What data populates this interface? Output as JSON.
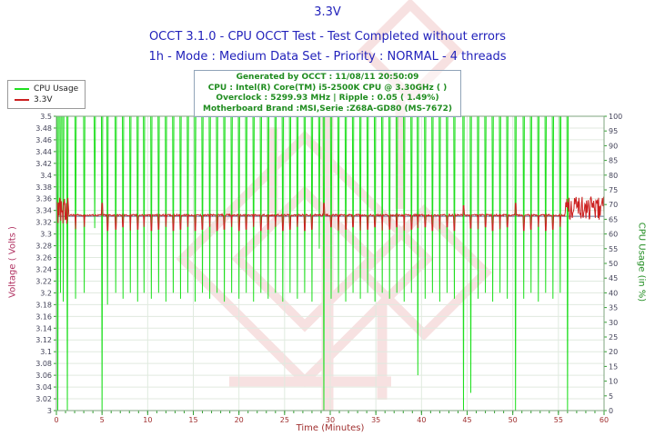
{
  "header": {
    "title": "3.3V",
    "line2": "OCCT 3.1.0 - CPU OCCT Test - Test Completed without errors",
    "line3": "1h - Mode : Medium Data Set - Priority : NORMAL - 4 threads",
    "color": "#2222bb"
  },
  "info_box": {
    "text_color": "#1f8c1f",
    "lines": [
      "Generated by OCCT : 11/08/11 20:50:09",
      "CPU : Intel(R) Core(TM) i5-2500K CPU @ 3.30GHz ( )",
      "Overclock : 5299.93 MHz | Ripple : 0.05 ( 1.49%)",
      "Motherboard Brand :MSI,Serie :Z68A-GD80 (MS-7672)"
    ]
  },
  "legend": {
    "items": [
      {
        "label": "CPU Usage",
        "color": "#1fdf1f"
      },
      {
        "label": "3.3V",
        "color": "#cc2020"
      }
    ]
  },
  "watermark_color": "#e39a9a",
  "chart_data": {
    "type": "line",
    "title": "3.3V",
    "xlabel": "Time (Minutes)",
    "x_min": 0,
    "x_max": 60,
    "x_tick_major": 5,
    "x_tick_minor": 1,
    "grid": true,
    "legend_position": "top-left",
    "left_axis": {
      "label": "Voltage ( Volts )",
      "min": 3.0,
      "max": 3.5,
      "step": 0.02,
      "color": "#b03060",
      "tick_label_color": "#44445a"
    },
    "right_axis": {
      "label": "CPU Usage (in %)",
      "min": 0,
      "max": 100,
      "step": 5,
      "color": "#1f8c1f",
      "tick_label_color": "#44445a"
    },
    "x_tick_label_color": "#a03030",
    "frame_color": "#7fa57f",
    "grid_color": "#e0eadf",
    "tick_color": "#2f9f2f",
    "series": [
      {
        "name": "CPU Usage",
        "axis": "right",
        "color": "#1fdf1f",
        "baseline": 100,
        "dips": [
          [
            0.15,
            0
          ],
          [
            0.45,
            40
          ],
          [
            0.75,
            37
          ],
          [
            1.2,
            0
          ],
          [
            2.1,
            38
          ],
          [
            3.05,
            40
          ],
          [
            4.2,
            62
          ],
          [
            5.0,
            0
          ],
          [
            5.6,
            36
          ],
          [
            6.5,
            40
          ],
          [
            7.3,
            38
          ],
          [
            8.1,
            40
          ],
          [
            8.9,
            37
          ],
          [
            9.6,
            40
          ],
          [
            10.4,
            38
          ],
          [
            11.2,
            40
          ],
          [
            12.0,
            37
          ],
          [
            12.8,
            40
          ],
          [
            13.6,
            38
          ],
          [
            14.4,
            40
          ],
          [
            15.2,
            37
          ],
          [
            16.0,
            40
          ],
          [
            16.8,
            38
          ],
          [
            17.6,
            40
          ],
          [
            18.4,
            37
          ],
          [
            19.2,
            40
          ],
          [
            20.0,
            38
          ],
          [
            20.8,
            40
          ],
          [
            21.6,
            37
          ],
          [
            22.4,
            40
          ],
          [
            23.2,
            38
          ],
          [
            24.0,
            40
          ],
          [
            24.8,
            37
          ],
          [
            25.6,
            40
          ],
          [
            26.4,
            38
          ],
          [
            27.2,
            40
          ],
          [
            28.0,
            37
          ],
          [
            28.8,
            55
          ],
          [
            29.3,
            0
          ],
          [
            30.1,
            38
          ],
          [
            30.9,
            40
          ],
          [
            31.7,
            37
          ],
          [
            32.5,
            40
          ],
          [
            33.3,
            38
          ],
          [
            34.1,
            40
          ],
          [
            34.9,
            37
          ],
          [
            35.7,
            40
          ],
          [
            36.5,
            38
          ],
          [
            37.3,
            40
          ],
          [
            38.1,
            37
          ],
          [
            38.9,
            40
          ],
          [
            39.6,
            12
          ],
          [
            40.4,
            38
          ],
          [
            41.2,
            40
          ],
          [
            42.0,
            37
          ],
          [
            42.8,
            40
          ],
          [
            43.6,
            38
          ],
          [
            44.6,
            0
          ],
          [
            45.4,
            6
          ],
          [
            46.2,
            38
          ],
          [
            47.0,
            40
          ],
          [
            47.8,
            37
          ],
          [
            48.6,
            40
          ],
          [
            49.4,
            38
          ],
          [
            50.3,
            0
          ],
          [
            51.2,
            38
          ],
          [
            52.0,
            40
          ],
          [
            52.8,
            37
          ],
          [
            53.6,
            40
          ],
          [
            54.4,
            38
          ],
          [
            55.2,
            40
          ],
          [
            56.0,
            0
          ]
        ]
      },
      {
        "name": "3.3V",
        "axis": "left",
        "color": "#cc2020",
        "baseline": 3.332,
        "jitter": 0.0015,
        "sample_step": 0.06,
        "average_line": {
          "value": 3.33,
          "color": "#667799"
        },
        "noise_regions": [
          {
            "from": 0,
            "to": 1.35,
            "center": 3.34,
            "amp": 0.024
          },
          {
            "from": 55.7,
            "to": 60,
            "center": 3.344,
            "amp": 0.02
          }
        ],
        "spikes": [
          [
            2.1,
            3.308
          ],
          [
            3.05,
            3.312
          ],
          [
            5.0,
            3.352
          ],
          [
            5.6,
            3.306
          ],
          [
            6.5,
            3.308
          ],
          [
            7.3,
            3.312
          ],
          [
            8.1,
            3.306
          ],
          [
            8.9,
            3.308
          ],
          [
            9.6,
            3.312
          ],
          [
            10.4,
            3.306
          ],
          [
            11.2,
            3.308
          ],
          [
            12.0,
            3.312
          ],
          [
            12.8,
            3.306
          ],
          [
            13.6,
            3.308
          ],
          [
            14.4,
            3.312
          ],
          [
            15.2,
            3.306
          ],
          [
            16.0,
            3.308
          ],
          [
            16.8,
            3.312
          ],
          [
            17.6,
            3.306
          ],
          [
            18.4,
            3.308
          ],
          [
            19.2,
            3.312
          ],
          [
            20.0,
            3.306
          ],
          [
            20.8,
            3.308
          ],
          [
            21.6,
            3.312
          ],
          [
            22.4,
            3.306
          ],
          [
            23.2,
            3.308
          ],
          [
            24.0,
            3.312
          ],
          [
            24.8,
            3.306
          ],
          [
            25.6,
            3.308
          ],
          [
            26.4,
            3.312
          ],
          [
            27.2,
            3.306
          ],
          [
            28.0,
            3.308
          ],
          [
            29.3,
            3.352
          ],
          [
            30.1,
            3.312
          ],
          [
            30.9,
            3.306
          ],
          [
            31.7,
            3.308
          ],
          [
            32.5,
            3.312
          ],
          [
            33.3,
            3.306
          ],
          [
            34.1,
            3.308
          ],
          [
            34.9,
            3.312
          ],
          [
            35.7,
            3.306
          ],
          [
            36.5,
            3.308
          ],
          [
            37.3,
            3.312
          ],
          [
            38.1,
            3.306
          ],
          [
            38.9,
            3.308
          ],
          [
            39.6,
            3.31
          ],
          [
            40.4,
            3.312
          ],
          [
            41.2,
            3.306
          ],
          [
            42.0,
            3.308
          ],
          [
            42.8,
            3.312
          ],
          [
            43.6,
            3.306
          ],
          [
            44.6,
            3.348
          ],
          [
            45.4,
            3.31
          ],
          [
            46.2,
            3.308
          ],
          [
            47.0,
            3.312
          ],
          [
            47.8,
            3.306
          ],
          [
            48.6,
            3.308
          ],
          [
            49.4,
            3.312
          ],
          [
            50.3,
            3.352
          ],
          [
            51.2,
            3.306
          ],
          [
            52.0,
            3.308
          ],
          [
            52.8,
            3.312
          ],
          [
            53.6,
            3.306
          ],
          [
            54.4,
            3.308
          ],
          [
            55.2,
            3.312
          ]
        ]
      }
    ]
  }
}
